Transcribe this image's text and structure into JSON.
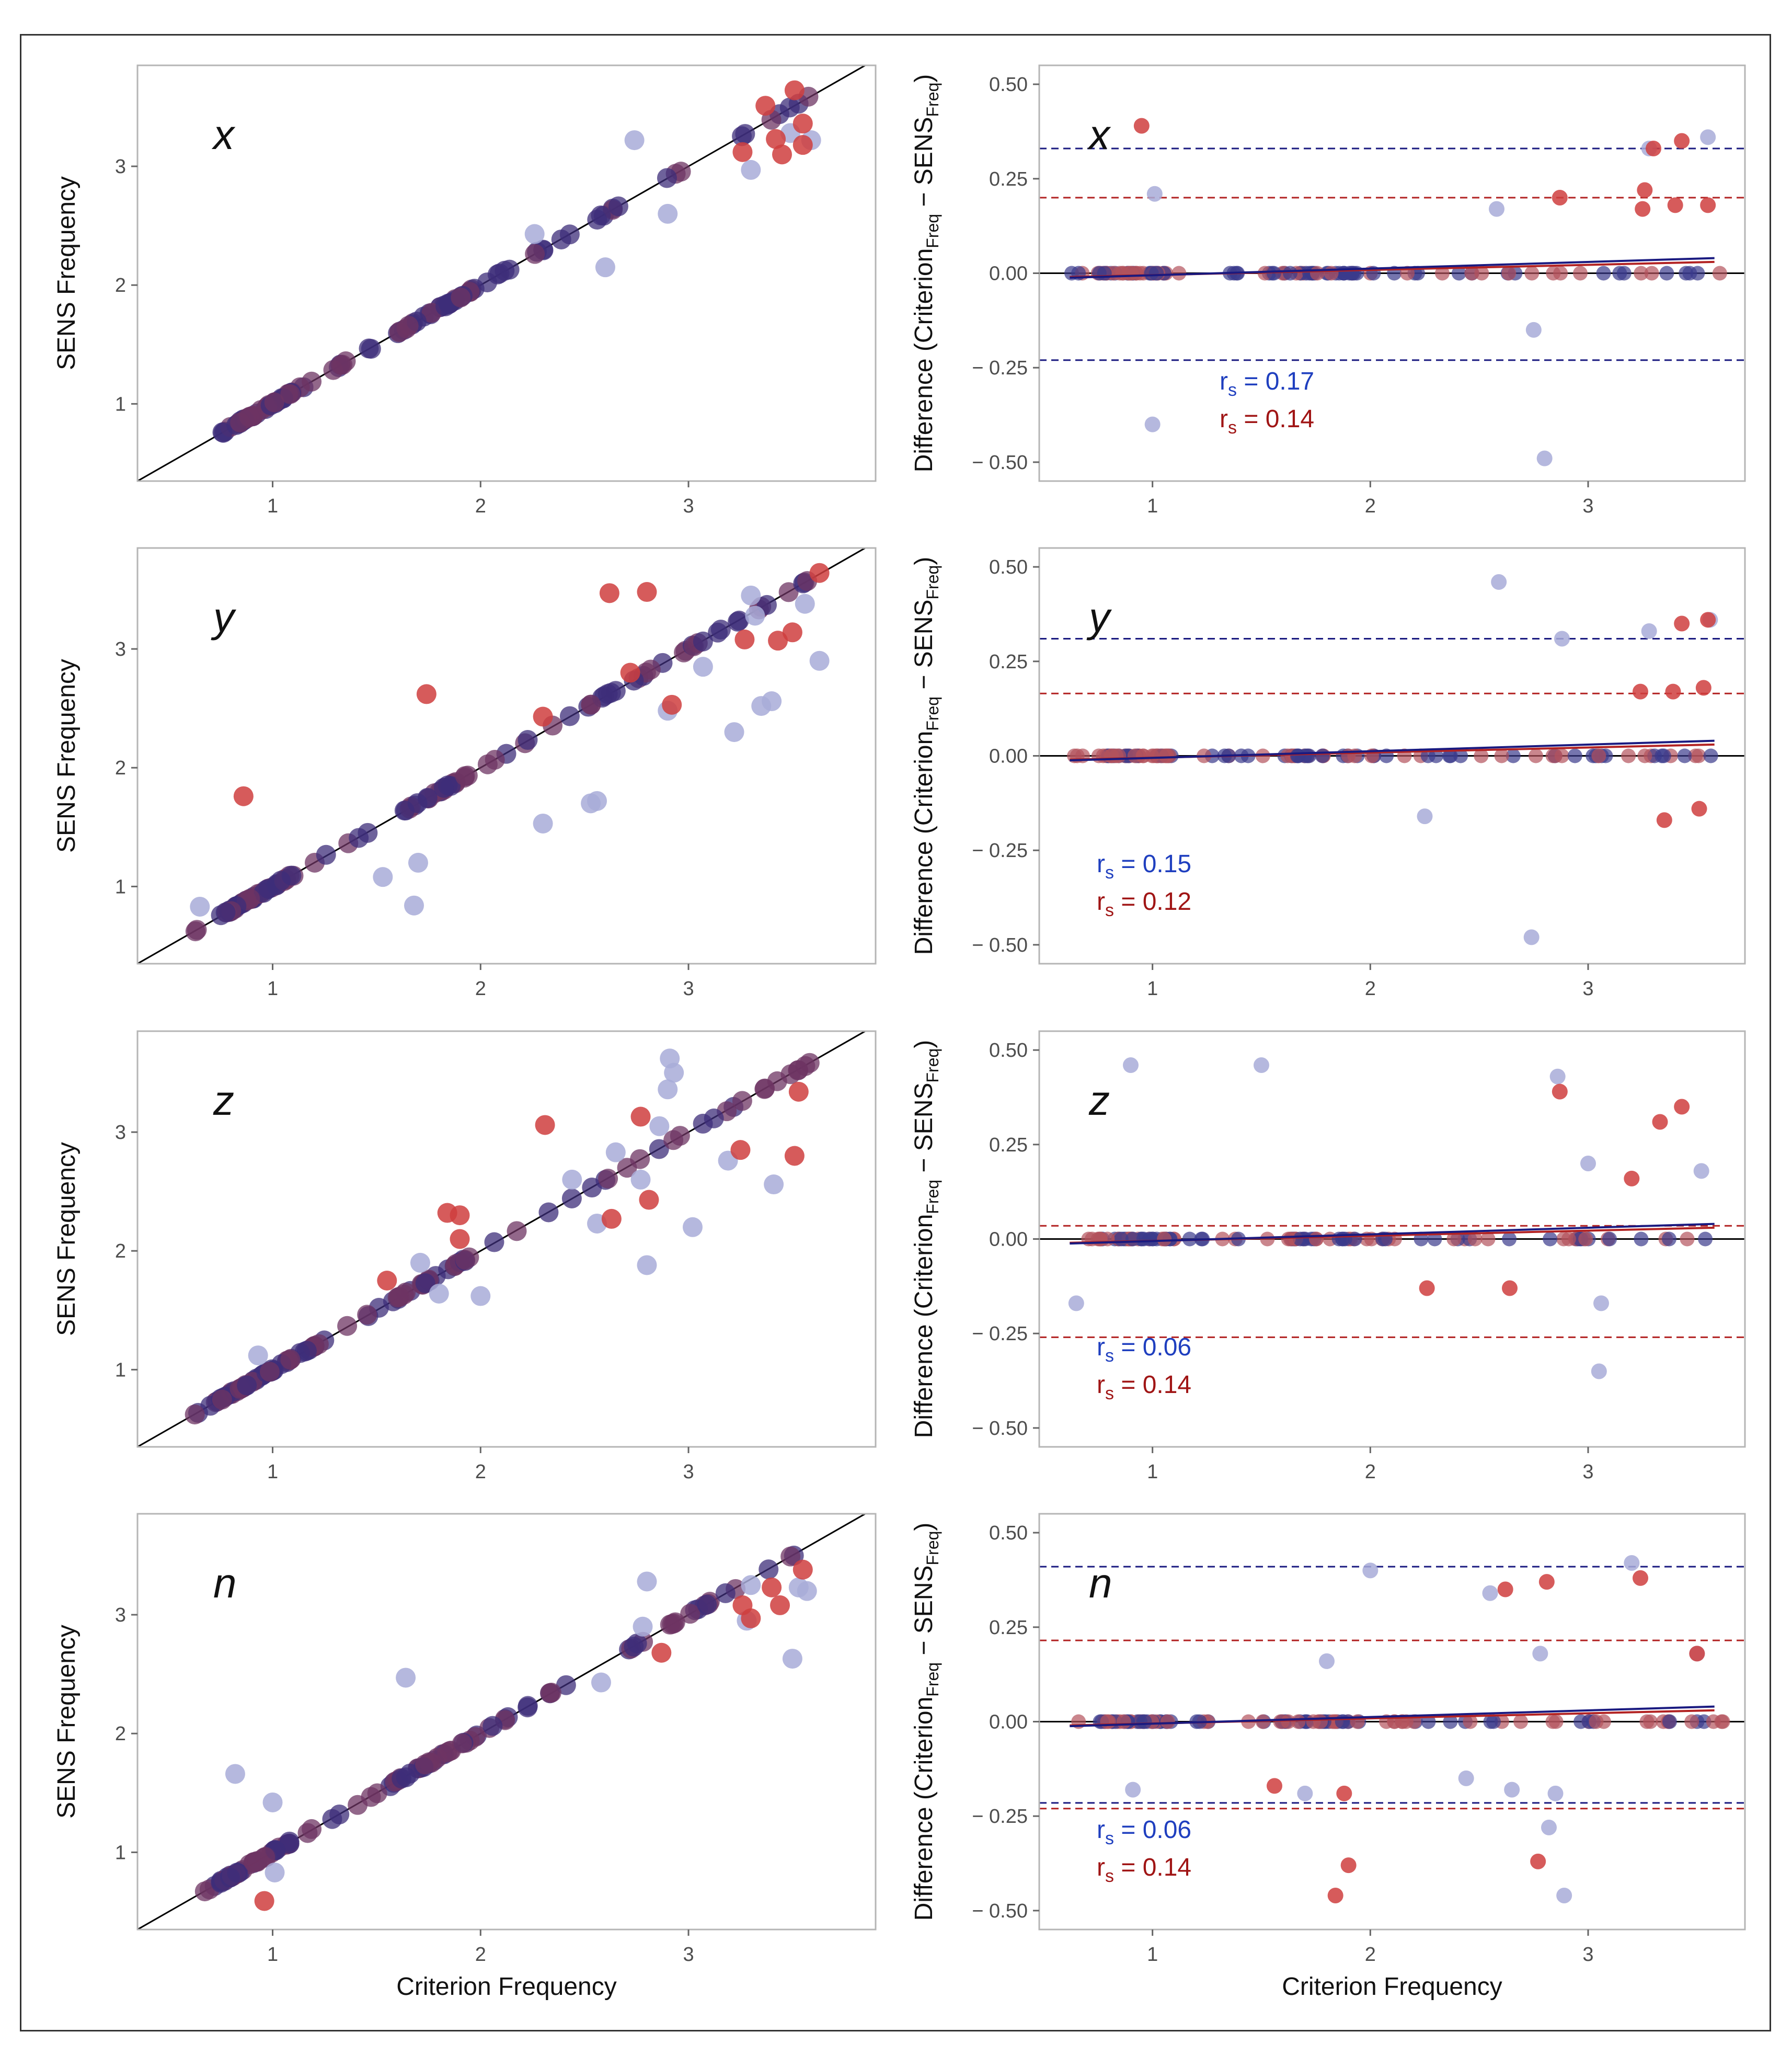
{
  "figure": {
    "x_axis_title": "Criterion Frequency",
    "left_y_title": "SENS Frequency",
    "right_y_title": {
      "prefix": "Difference (Criterion",
      "sub1": "Freq",
      "middle": " − SENS",
      "sub2": "Freq",
      "suffix": ")"
    },
    "correlation_symbol": "r",
    "correlation_subscript": "s",
    "colors": {
      "blue_points": "#a8acd8",
      "red_points": "#cf3e3e",
      "overlap_points": "#6e3463",
      "blue_text": "#1f3fbf",
      "red_text": "#a01515",
      "blue_line": "#1a1a80",
      "red_line": "#b22222",
      "identity_line": "#000000"
    }
  },
  "chart_data": [
    {
      "type": "scatter",
      "panel": "x",
      "side": "left",
      "title": "x",
      "xlabel": "",
      "ylabel": "SENS Frequency",
      "xlim": [
        0.35,
        3.9
      ],
      "ylim": [
        0.35,
        3.85
      ],
      "xticks": [
        "1",
        "2",
        "3"
      ],
      "yticks": [
        "1",
        "2",
        "3"
      ],
      "reference_line": "y = x",
      "series": [
        {
          "name": "blue",
          "points": [
            [
              2.74,
              3.22
            ],
            [
              3.59,
              3.22
            ],
            [
              3.3,
              2.97
            ],
            [
              2.9,
              2.6
            ],
            [
              2.26,
              2.43
            ],
            [
              2.6,
              2.15
            ],
            [
              3.49,
              3.28
            ]
          ]
        },
        {
          "name": "red",
          "points": [
            [
              3.37,
              3.51
            ],
            [
              3.51,
              3.64
            ],
            [
              3.55,
              3.36
            ],
            [
              3.42,
              3.23
            ],
            [
              3.26,
              3.12
            ],
            [
              3.45,
              3.1
            ],
            [
              3.55,
              3.18
            ]
          ]
        }
      ]
    },
    {
      "type": "scatter",
      "panel": "x",
      "side": "right",
      "title": "x",
      "xlabel": "",
      "ylabel": "Difference (Criterion Freq − SENS Freq)",
      "xlim": [
        0.48,
        3.72
      ],
      "ylim": [
        -0.55,
        0.55
      ],
      "xticks": [
        "1",
        "2",
        "3"
      ],
      "yticks": [
        "0.50",
        "0.25",
        "0.00",
        "− 0.25",
        "− 0.50"
      ],
      "limits_of_agreement": {
        "blue": [
          0.33,
          -0.23
        ],
        "red": [
          0.2
        ]
      },
      "correlations": [
        {
          "color": "blue",
          "value": "0.17"
        },
        {
          "color": "red",
          "value": "0.14"
        }
      ],
      "series": [
        {
          "name": "blue",
          "points": [
            [
              1.01,
              0.21
            ],
            [
              2.58,
              0.17
            ],
            [
              2.75,
              -0.15
            ],
            [
              2.8,
              -0.49
            ],
            [
              3.28,
              0.33
            ],
            [
              3.55,
              0.36
            ],
            [
              1.0,
              -0.4
            ]
          ]
        },
        {
          "name": "red",
          "points": [
            [
              0.95,
              0.39
            ],
            [
              2.87,
              0.2
            ],
            [
              3.26,
              0.22
            ],
            [
              3.25,
              0.17
            ],
            [
              3.4,
              0.18
            ],
            [
              3.43,
              0.35
            ],
            [
              3.55,
              0.18
            ],
            [
              3.3,
              0.33
            ]
          ]
        }
      ]
    },
    {
      "type": "scatter",
      "panel": "y",
      "side": "left",
      "title": "y",
      "xlabel": "",
      "ylabel": "SENS Frequency",
      "xlim": [
        0.35,
        3.9
      ],
      "ylim": [
        0.35,
        3.85
      ],
      "xticks": [
        "1",
        "2",
        "3"
      ],
      "yticks": [
        "1",
        "2",
        "3"
      ],
      "reference_line": "y = x",
      "series": [
        {
          "name": "blue",
          "points": [
            [
              0.65,
              0.83
            ],
            [
              1.53,
              1.08
            ],
            [
              1.7,
              1.2
            ],
            [
              1.68,
              0.84
            ],
            [
              2.3,
              1.53
            ],
            [
              2.53,
              1.7
            ],
            [
              2.56,
              1.72
            ],
            [
              2.9,
              2.48
            ],
            [
              3.07,
              2.85
            ],
            [
              3.22,
              2.3
            ],
            [
              3.35,
              2.52
            ],
            [
              3.4,
              2.56
            ],
            [
              3.3,
              3.45
            ],
            [
              3.32,
              3.28
            ],
            [
              3.56,
              3.38
            ],
            [
              3.63,
              2.9
            ]
          ]
        },
        {
          "name": "red",
          "points": [
            [
              0.86,
              1.76
            ],
            [
              1.74,
              2.62
            ],
            [
              2.3,
              2.43
            ],
            [
              2.62,
              3.47
            ],
            [
              2.8,
              3.48
            ],
            [
              2.92,
              2.53
            ],
            [
              2.72,
              2.8
            ],
            [
              3.27,
              3.08
            ],
            [
              3.43,
              3.07
            ],
            [
              3.5,
              3.14
            ],
            [
              3.63,
              3.64
            ]
          ]
        }
      ]
    },
    {
      "type": "scatter",
      "panel": "y",
      "side": "right",
      "title": "y",
      "xlabel": "",
      "ylabel": "Difference (Criterion Freq − SENS Freq)",
      "xlim": [
        0.48,
        3.72
      ],
      "ylim": [
        -0.55,
        0.55
      ],
      "xticks": [
        "1",
        "2",
        "3"
      ],
      "yticks": [
        "0.50",
        "0.25",
        "0.00",
        "− 0.25",
        "− 0.50"
      ],
      "limits_of_agreement": {
        "blue": [
          0.31
        ],
        "red": [
          0.165
        ]
      },
      "correlations": [
        {
          "color": "blue",
          "value": "0.15"
        },
        {
          "color": "red",
          "value": "0.12"
        }
      ],
      "series": [
        {
          "name": "blue",
          "points": [
            [
              2.59,
              0.46
            ],
            [
              2.88,
              0.31
            ],
            [
              2.25,
              -0.16
            ],
            [
              2.74,
              -0.48
            ],
            [
              3.28,
              0.33
            ],
            [
              3.56,
              0.36
            ]
          ]
        },
        {
          "name": "red",
          "points": [
            [
              3.24,
              0.17
            ],
            [
              3.35,
              -0.17
            ],
            [
              3.39,
              0.17
            ],
            [
              3.43,
              0.35
            ],
            [
              3.53,
              0.18
            ],
            [
              3.51,
              -0.14
            ],
            [
              3.55,
              0.36
            ]
          ]
        }
      ]
    },
    {
      "type": "scatter",
      "panel": "z",
      "side": "left",
      "title": "z",
      "xlabel": "",
      "ylabel": "SENS Frequency",
      "xlim": [
        0.35,
        3.9
      ],
      "ylim": [
        0.35,
        3.85
      ],
      "xticks": [
        "1",
        "2",
        "3"
      ],
      "yticks": [
        "1",
        "2",
        "3"
      ],
      "reference_line": "y = x",
      "series": [
        {
          "name": "blue",
          "points": [
            [
              0.93,
              1.12
            ],
            [
              1.71,
              1.9
            ],
            [
              1.8,
              1.64
            ],
            [
              2.0,
              1.62
            ],
            [
              2.44,
              2.6
            ],
            [
              2.56,
              2.23
            ],
            [
              2.65,
              2.83
            ],
            [
              2.77,
              2.6
            ],
            [
              2.8,
              1.88
            ],
            [
              2.86,
              3.05
            ],
            [
              2.9,
              3.36
            ],
            [
              2.91,
              3.62
            ],
            [
              2.93,
              3.5
            ],
            [
              3.02,
              2.2
            ],
            [
              3.19,
              2.76
            ],
            [
              3.41,
              2.56
            ]
          ]
        },
        {
          "name": "red",
          "points": [
            [
              1.55,
              1.75
            ],
            [
              1.84,
              2.32
            ],
            [
              1.9,
              2.3
            ],
            [
              1.9,
              2.1
            ],
            [
              2.31,
              3.06
            ],
            [
              2.63,
              2.27
            ],
            [
              2.77,
              3.13
            ],
            [
              2.81,
              2.43
            ],
            [
              3.25,
              2.85
            ],
            [
              3.51,
              2.8
            ],
            [
              3.53,
              3.34
            ]
          ]
        }
      ]
    },
    {
      "type": "scatter",
      "panel": "z",
      "side": "right",
      "title": "z",
      "xlabel": "",
      "ylabel": "Difference (Criterion Freq − SENS Freq)",
      "xlim": [
        0.48,
        3.72
      ],
      "ylim": [
        -0.55,
        0.55
      ],
      "xticks": [
        "1",
        "2",
        "3"
      ],
      "yticks": [
        "0.50",
        "0.25",
        "0.00",
        "− 0.25",
        "− 0.50"
      ],
      "limits_of_agreement": {
        "red": [
          0.035,
          -0.26
        ]
      },
      "correlations": [
        {
          "color": "blue",
          "value": "0.06"
        },
        {
          "color": "red",
          "value": "0.14"
        }
      ],
      "series": [
        {
          "name": "blue",
          "points": [
            [
              0.65,
              -0.17
            ],
            [
              0.9,
              0.46
            ],
            [
              1.5,
              0.46
            ],
            [
              2.86,
              0.43
            ],
            [
              3.0,
              0.2
            ],
            [
              3.06,
              -0.17
            ],
            [
              3.05,
              -0.35
            ],
            [
              3.52,
              0.18
            ]
          ]
        },
        {
          "name": "red",
          "points": [
            [
              2.26,
              -0.13
            ],
            [
              2.64,
              -0.13
            ],
            [
              2.87,
              0.39
            ],
            [
              3.2,
              0.16
            ],
            [
              3.33,
              0.31
            ],
            [
              3.43,
              0.35
            ]
          ]
        }
      ]
    },
    {
      "type": "scatter",
      "panel": "n",
      "side": "left",
      "title": "n",
      "xlabel": "Criterion Frequency",
      "ylabel": "SENS Frequency",
      "xlim": [
        0.35,
        3.9
      ],
      "ylim": [
        0.35,
        3.85
      ],
      "xticks": [
        "1",
        "2",
        "3"
      ],
      "yticks": [
        "1",
        "2",
        "3"
      ],
      "reference_line": "y = x",
      "series": [
        {
          "name": "blue",
          "points": [
            [
              0.82,
              1.66
            ],
            [
              1.0,
              1.42
            ],
            [
              1.01,
              0.83
            ],
            [
              1.64,
              2.47
            ],
            [
              2.58,
              2.43
            ],
            [
              2.78,
              2.9
            ],
            [
              2.8,
              3.28
            ],
            [
              3.28,
              2.95
            ],
            [
              3.3,
              3.25
            ],
            [
              3.53,
              3.23
            ],
            [
              3.5,
              2.63
            ],
            [
              3.57,
              3.2
            ]
          ]
        },
        {
          "name": "red",
          "points": [
            [
              0.96,
              0.59
            ],
            [
              2.87,
              2.68
            ],
            [
              3.26,
              3.08
            ],
            [
              3.4,
              3.23
            ],
            [
              3.44,
              3.08
            ],
            [
              3.55,
              3.38
            ],
            [
              3.3,
              2.97
            ]
          ]
        }
      ]
    },
    {
      "type": "scatter",
      "panel": "n",
      "side": "right",
      "title": "n",
      "xlabel": "Criterion Frequency",
      "ylabel": "Difference (Criterion Freq − SENS Freq)",
      "xlim": [
        0.48,
        3.72
      ],
      "ylim": [
        -0.55,
        0.55
      ],
      "xticks": [
        "1",
        "2",
        "3"
      ],
      "yticks": [
        "0.50",
        "0.25",
        "0.00",
        "− 0.25",
        "− 0.50"
      ],
      "limits_of_agreement": {
        "blue": [
          0.41,
          -0.215
        ],
        "red": [
          0.215,
          -0.23
        ]
      },
      "correlations": [
        {
          "color": "blue",
          "value": "0.06"
        },
        {
          "color": "red",
          "value": "0.14"
        }
      ],
      "series": [
        {
          "name": "blue",
          "points": [
            [
              0.91,
              -0.18
            ],
            [
              1.8,
              0.16
            ],
            [
              1.7,
              -0.19
            ],
            [
              2.0,
              0.4
            ],
            [
              2.44,
              -0.15
            ],
            [
              2.55,
              0.34
            ],
            [
              2.65,
              -0.18
            ],
            [
              2.78,
              0.18
            ],
            [
              2.82,
              -0.28
            ],
            [
              2.85,
              -0.19
            ],
            [
              2.89,
              -0.46
            ],
            [
              3.2,
              0.42
            ],
            [
              3.5,
              0.18
            ]
          ]
        },
        {
          "name": "red",
          "points": [
            [
              1.56,
              -0.17
            ],
            [
              1.84,
              -0.46
            ],
            [
              1.88,
              -0.19
            ],
            [
              1.9,
              -0.38
            ],
            [
              2.62,
              0.35
            ],
            [
              2.77,
              -0.37
            ],
            [
              2.81,
              0.37
            ],
            [
              3.24,
              0.38
            ],
            [
              3.5,
              0.18
            ]
          ]
        }
      ]
    }
  ]
}
